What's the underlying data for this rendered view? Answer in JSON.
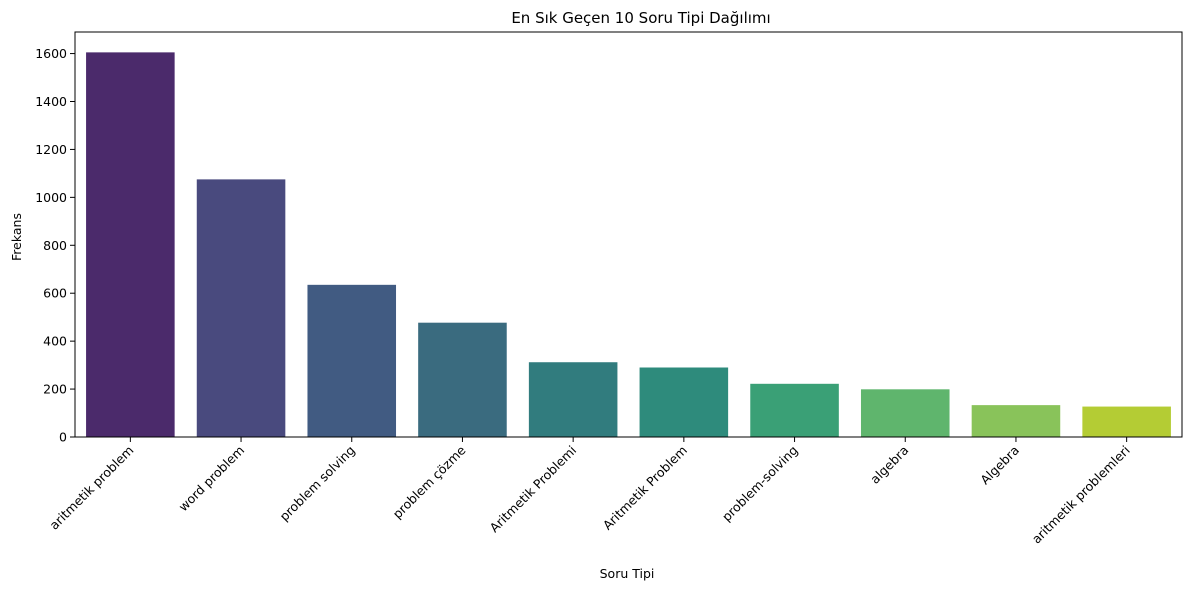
{
  "chart_data": {
    "type": "bar",
    "title": "En Sık Geçen 10 Soru Tipi Dağılımı",
    "xlabel": "Soru Tipi",
    "ylabel": "Frekans",
    "categories": [
      "aritmetik problem",
      "word problem",
      "problem solving",
      "problem çözme",
      "Aritmetik Problemi",
      "Aritmetik Problem",
      "problem-solving",
      "algebra",
      "Algebra",
      "aritmetik problemleri"
    ],
    "values": [
      1605,
      1075,
      635,
      477,
      312,
      290,
      222,
      199,
      133,
      127
    ],
    "ylim": [
      0,
      1690
    ],
    "yticks": [
      0,
      200,
      400,
      600,
      800,
      1000,
      1200,
      1400,
      1600
    ],
    "colors": [
      "#4b2a6b",
      "#494a7e",
      "#415b82",
      "#3a6b7f",
      "#317c7e",
      "#2e8b7c",
      "#3aa076",
      "#5fb56d",
      "#89c35a",
      "#b4cc34"
    ],
    "grid": false,
    "legend": "none"
  }
}
